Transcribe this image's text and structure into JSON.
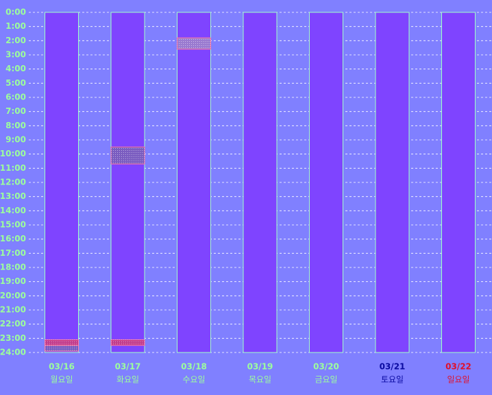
{
  "chart_data": {
    "type": "schedule",
    "categories": [
      "03/16",
      "03/17",
      "03/18",
      "03/19",
      "03/20",
      "03/21",
      "03/22"
    ],
    "category_sublabels": [
      "월요일",
      "화요일",
      "수요일",
      "목요일",
      "금요일",
      "토요일",
      "일요일"
    ],
    "label_colors": [
      "#9cff9c",
      "#9cff9c",
      "#9cff9c",
      "#9cff9c",
      "#9cff9c",
      "#0a0aa0",
      "#e0102a"
    ],
    "column_color": "#7f44ff",
    "ylim": [
      0,
      24
    ],
    "yticks": [
      {
        "value": 0,
        "label": "0:00"
      },
      {
        "value": 1,
        "label": "1:00"
      },
      {
        "value": 2,
        "label": "2:00"
      },
      {
        "value": 3,
        "label": "3:00"
      },
      {
        "value": 4,
        "label": "4:00"
      },
      {
        "value": 5,
        "label": "5:00"
      },
      {
        "value": 6,
        "label": "6:00"
      },
      {
        "value": 7,
        "label": "7:00"
      },
      {
        "value": 8,
        "label": "8:00"
      },
      {
        "value": 9,
        "label": "9:00"
      },
      {
        "value": 10,
        "label": "10:00"
      },
      {
        "value": 11,
        "label": "11:00"
      },
      {
        "value": 12,
        "label": "12:00"
      },
      {
        "value": 13,
        "label": "13:00"
      },
      {
        "value": 14,
        "label": "14:00"
      },
      {
        "value": 15,
        "label": "15:00"
      },
      {
        "value": 16,
        "label": "16:00"
      },
      {
        "value": 17,
        "label": "17:00"
      },
      {
        "value": 18,
        "label": "18:00"
      },
      {
        "value": 19,
        "label": "19:00"
      },
      {
        "value": 20,
        "label": "20:00"
      },
      {
        "value": 21,
        "label": "21:00"
      },
      {
        "value": 22,
        "label": "22:00"
      },
      {
        "value": 23,
        "label": "23:00"
      },
      {
        "value": 24,
        "label": "24:00"
      }
    ],
    "grid": true,
    "blocks": [
      {
        "category": "03/16",
        "start": 23.1,
        "end": 23.5,
        "color": "#c23c8c"
      },
      {
        "category": "03/16",
        "start": 23.5,
        "end": 23.9,
        "color": "#7a5cc0"
      },
      {
        "category": "03/17",
        "start": 9.5,
        "end": 10.7,
        "color": "#7a5cc0"
      },
      {
        "category": "03/17",
        "start": 23.1,
        "end": 23.5,
        "color": "#c23c8c"
      },
      {
        "category": "03/18",
        "start": 1.8,
        "end": 2.6,
        "color": "#9a7ad0"
      }
    ]
  }
}
